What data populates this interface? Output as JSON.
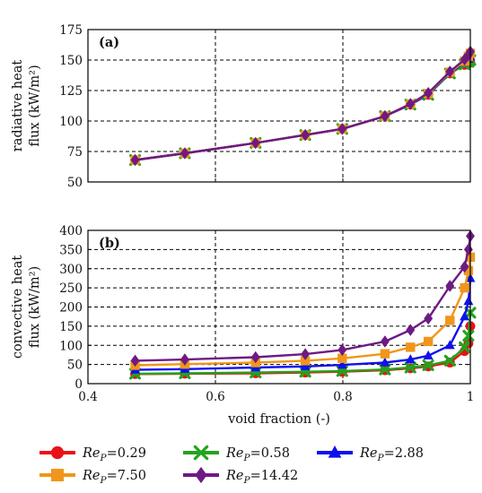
{
  "chart_data": [
    {
      "type": "line",
      "panel_label": "(a)",
      "ylabel_lines": [
        "radiative heat",
        "flux (kW/m²)"
      ],
      "ylim": [
        50,
        175
      ],
      "yticks": [
        "50",
        "75",
        "100",
        "125",
        "150",
        "175"
      ],
      "xlim": [
        0.4,
        1.0
      ],
      "xtick_labels": [],
      "grid": true,
      "series": [
        {
          "name": "ReP=0.29",
          "color": "#e8121a",
          "marker": "circle",
          "x": [
            0.474,
            0.552,
            0.663,
            0.741,
            0.799,
            0.866,
            0.906,
            0.934,
            0.968,
            0.991,
            0.997,
            1.0
          ],
          "y": [
            68,
            73.5,
            82,
            88.5,
            93.5,
            104,
            113.5,
            121.5,
            139,
            146,
            147.5,
            148
          ]
        },
        {
          "name": "ReP=0.58",
          "color": "#22a31c",
          "marker": "x",
          "x": [
            0.474,
            0.552,
            0.663,
            0.741,
            0.799,
            0.866,
            0.906,
            0.934,
            0.968,
            0.991,
            0.997,
            1.0
          ],
          "y": [
            68,
            73.5,
            82,
            88.5,
            93.5,
            104,
            113.5,
            121.5,
            139,
            146.5,
            148.5,
            150
          ]
        },
        {
          "name": "ReP=2.88",
          "color": "#1010ee",
          "marker": "triangle",
          "x": [
            0.474,
            0.552,
            0.663,
            0.741,
            0.799,
            0.866,
            0.906,
            0.934,
            0.968,
            0.991,
            0.997,
            1.0
          ],
          "y": [
            68,
            73.5,
            82,
            88.5,
            93.5,
            104,
            113.5,
            122,
            139.5,
            148,
            151,
            153
          ]
        },
        {
          "name": "ReP=7.50",
          "color": "#f0961a",
          "marker": "square",
          "x": [
            0.474,
            0.552,
            0.663,
            0.741,
            0.799,
            0.866,
            0.906,
            0.934,
            0.968,
            0.991,
            0.997,
            1.0
          ],
          "y": [
            68,
            73.5,
            82,
            88.5,
            93.5,
            104,
            114,
            122.5,
            140,
            149,
            153,
            155.5
          ]
        },
        {
          "name": "ReP=14.42",
          "color": "#6e1a84",
          "marker": "diamond",
          "x": [
            0.474,
            0.552,
            0.663,
            0.741,
            0.799,
            0.866,
            0.906,
            0.934,
            0.968,
            0.991,
            0.997,
            1.0
          ],
          "y": [
            68,
            73.5,
            82,
            88.5,
            93.5,
            104,
            114,
            123,
            140.5,
            150.5,
            154,
            157
          ]
        }
      ]
    },
    {
      "type": "line",
      "panel_label": "(b)",
      "ylabel_lines": [
        "convective heat",
        "flux (kW/m²)"
      ],
      "xlabel": "void fraction (-)",
      "ylim": [
        0,
        400
      ],
      "yticks": [
        "0",
        "50",
        "100",
        "150",
        "200",
        "250",
        "300",
        "350",
        "400"
      ],
      "xlim": [
        0.4,
        1.0
      ],
      "xtick_labels": [
        "0.4",
        "0.6",
        "0.8",
        "1"
      ],
      "grid": true,
      "series": [
        {
          "name": "ReP=0.29",
          "color": "#e8121a",
          "marker": "circle",
          "x": [
            0.474,
            0.552,
            0.663,
            0.741,
            0.799,
            0.866,
            0.906,
            0.934,
            0.968,
            0.991,
            0.997,
            1.0
          ],
          "y": [
            25,
            26,
            27,
            29,
            31,
            35,
            40,
            45,
            55,
            85,
            105,
            150
          ]
        },
        {
          "name": "ReP=0.58",
          "color": "#22a31c",
          "marker": "x",
          "x": [
            0.474,
            0.552,
            0.663,
            0.741,
            0.799,
            0.866,
            0.906,
            0.934,
            0.968,
            0.991,
            0.997,
            1.0
          ],
          "y": [
            26,
            27,
            29,
            31,
            33,
            37,
            42,
            48,
            60,
            95,
            125,
            185
          ]
        },
        {
          "name": "ReP=2.88",
          "color": "#1010ee",
          "marker": "triangle",
          "x": [
            0.474,
            0.552,
            0.663,
            0.741,
            0.799,
            0.866,
            0.906,
            0.934,
            0.968,
            0.991,
            0.997,
            1.0
          ],
          "y": [
            36,
            38,
            42,
            45,
            49,
            55,
            63,
            73,
            100,
            175,
            215,
            275
          ]
        },
        {
          "name": "ReP=7.50",
          "color": "#f0961a",
          "marker": "square",
          "x": [
            0.474,
            0.552,
            0.663,
            0.741,
            0.799,
            0.866,
            0.906,
            0.934,
            0.968,
            0.991,
            0.997,
            1.0
          ],
          "y": [
            48,
            51,
            55,
            60,
            66,
            78,
            95,
            110,
            165,
            250,
            295,
            330
          ]
        },
        {
          "name": "ReP=14.42",
          "color": "#6e1a84",
          "marker": "diamond",
          "x": [
            0.474,
            0.552,
            0.663,
            0.741,
            0.799,
            0.866,
            0.906,
            0.934,
            0.968,
            0.991,
            0.997,
            1.0
          ],
          "y": [
            60,
            63,
            69,
            77,
            88,
            110,
            140,
            170,
            255,
            305,
            350,
            385
          ]
        }
      ]
    }
  ],
  "legend": {
    "placement": "bottom",
    "entries": [
      {
        "sym": "Re",
        "sub": "P",
        "value": "=0.29",
        "color": "#e8121a",
        "marker": "circle"
      },
      {
        "sym": "Re",
        "sub": "P",
        "value": "=0.58",
        "color": "#22a31c",
        "marker": "x"
      },
      {
        "sym": "Re",
        "sub": "P",
        "value": "=2.88",
        "color": "#1010ee",
        "marker": "triangle"
      },
      {
        "sym": "Re",
        "sub": "P",
        "value": "=7.50",
        "color": "#f0961a",
        "marker": "square"
      },
      {
        "sym": "Re",
        "sub": "P",
        "value": "=14.42",
        "color": "#6e1a84",
        "marker": "diamond"
      }
    ]
  }
}
